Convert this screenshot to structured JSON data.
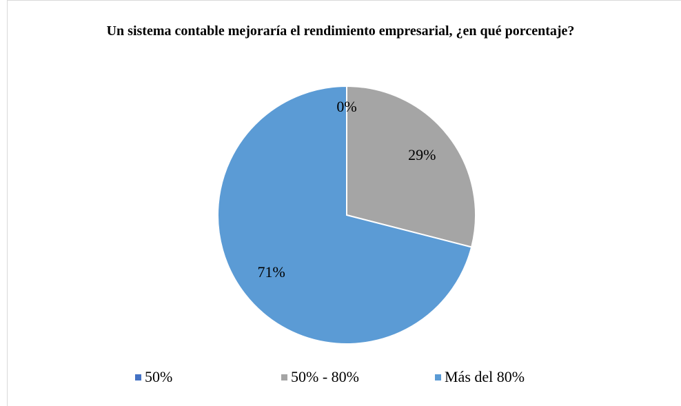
{
  "chart_data": {
    "type": "pie",
    "title": "Un sistema contable mejoraría  el rendimiento  empresarial,  ¿en qué porcentaje?",
    "categories": [
      "50%",
      "50% - 80%",
      "Más del 80%"
    ],
    "values": [
      0,
      29,
      71
    ],
    "value_labels": [
      "0%",
      "29%",
      "71%"
    ],
    "colors": [
      "#4472c4",
      "#a5a5a5",
      "#5b9bd5"
    ],
    "legend": "bottom"
  }
}
